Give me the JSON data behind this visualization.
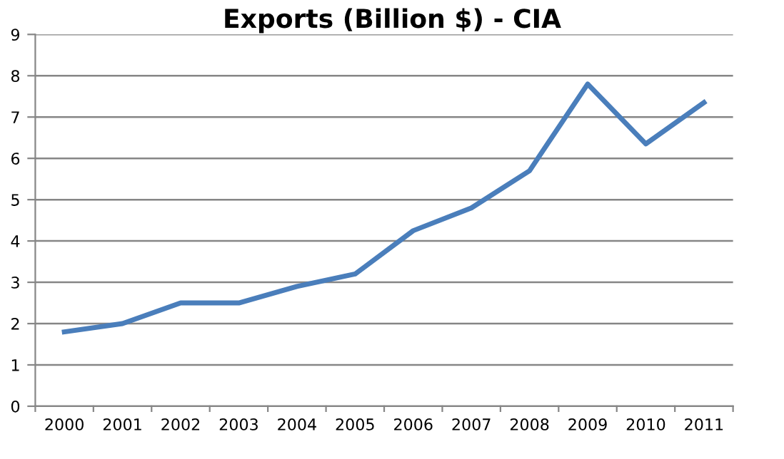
{
  "chart_data": {
    "type": "line",
    "title": "Exports (Billion $) - CIA",
    "categories": [
      "2000",
      "2001",
      "2002",
      "2003",
      "2004",
      "2005",
      "2006",
      "2007",
      "2008",
      "2009",
      "2010",
      "2011"
    ],
    "series": [
      {
        "color": "#4a7ebb",
        "values": [
          1.8,
          2.0,
          2.5,
          2.5,
          2.9,
          3.2,
          4.25,
          4.8,
          5.7,
          7.8,
          6.35,
          7.35
        ]
      }
    ],
    "ylim": [
      0,
      9
    ],
    "yticks": [
      0,
      1,
      2,
      3,
      4,
      5,
      6,
      7,
      8,
      9
    ],
    "grid": "y",
    "legend": false,
    "marker": "none",
    "line_style": "solid"
  }
}
